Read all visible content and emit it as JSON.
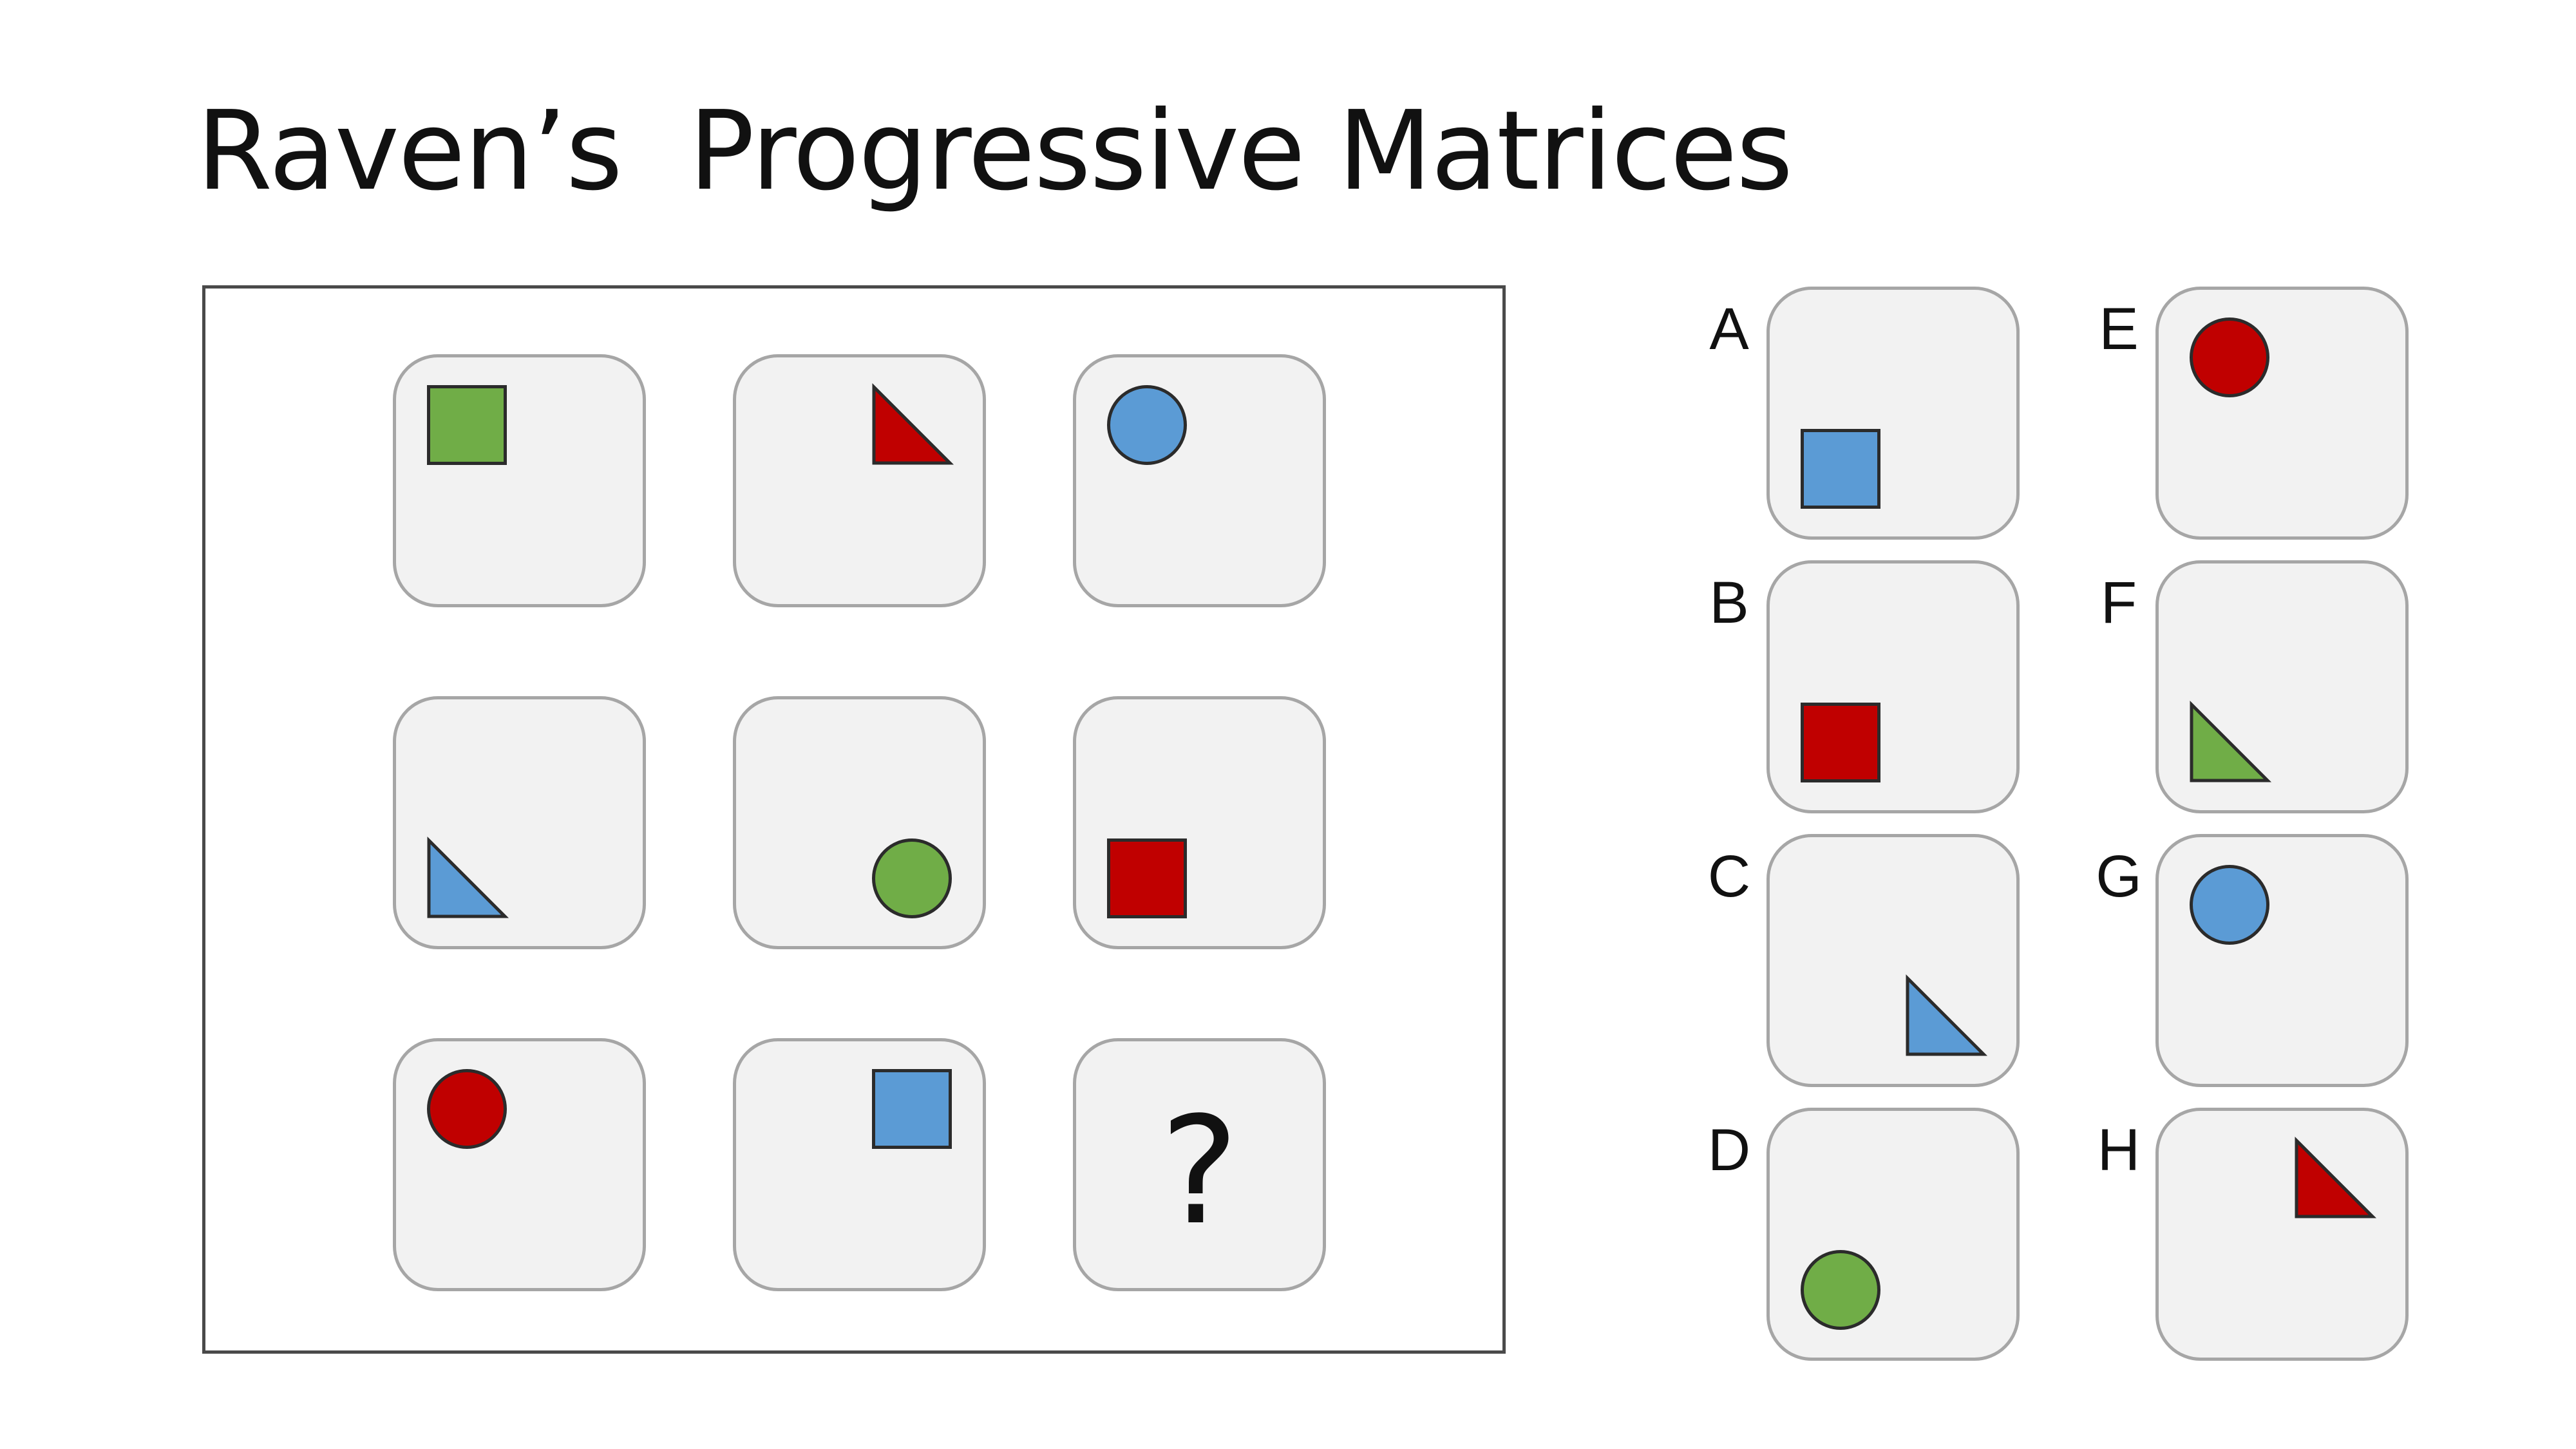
{
  "title": "Raven’s  Progressive Matrices",
  "colors": {
    "green": "#70ad47",
    "red": "#c00000",
    "blue": "#5b9bd5",
    "tile_fill": "#f2f2f2",
    "tile_border": "#a6a6a6",
    "shape_outline": "#2b2b2b",
    "frame_border": "#4a4a4a"
  },
  "matrix": [
    {
      "shape": "square",
      "color": "green",
      "position": "top-left"
    },
    {
      "shape": "triangle",
      "color": "red",
      "position": "top-right"
    },
    {
      "shape": "circle",
      "color": "blue",
      "position": "top-left"
    },
    {
      "shape": "triangle",
      "color": "blue",
      "position": "bottom-left"
    },
    {
      "shape": "circle",
      "color": "green",
      "position": "bottom-right"
    },
    {
      "shape": "square",
      "color": "red",
      "position": "bottom-left"
    },
    {
      "shape": "circle",
      "color": "red",
      "position": "top-left"
    },
    {
      "shape": "square",
      "color": "blue",
      "position": "top-right"
    },
    {
      "shape": "question",
      "label": "?"
    }
  ],
  "options": [
    {
      "letter": "A",
      "shape": "square",
      "color": "blue",
      "position": "bottom-left"
    },
    {
      "letter": "B",
      "shape": "square",
      "color": "red",
      "position": "bottom-left"
    },
    {
      "letter": "C",
      "shape": "triangle",
      "color": "blue",
      "position": "bottom-right"
    },
    {
      "letter": "D",
      "shape": "circle",
      "color": "green",
      "position": "bottom-left"
    },
    {
      "letter": "E",
      "shape": "circle",
      "color": "red",
      "position": "top-left"
    },
    {
      "letter": "F",
      "shape": "triangle",
      "color": "green",
      "position": "bottom-left"
    },
    {
      "letter": "G",
      "shape": "circle",
      "color": "blue",
      "position": "top-left"
    },
    {
      "letter": "H",
      "shape": "triangle",
      "color": "red",
      "position": "top-right"
    }
  ]
}
